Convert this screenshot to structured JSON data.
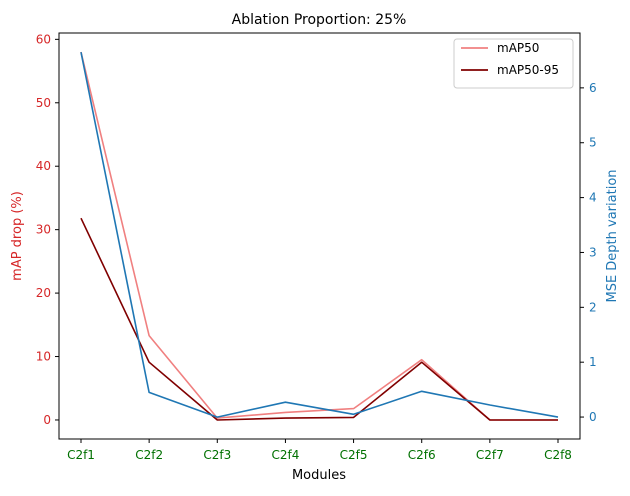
{
  "chart_data": {
    "type": "line",
    "title": "Ablation Proportion: 25%",
    "xlabel": "Modules",
    "categories": [
      "C2f1",
      "C2f2",
      "C2f3",
      "C2f4",
      "C2f5",
      "C2f6",
      "C2f7",
      "C2f8"
    ],
    "left_axis": {
      "label": "mAP drop (%)",
      "color": "#d62728",
      "ylim": [
        -3,
        61
      ],
      "ticks": [
        0,
        10,
        20,
        30,
        40,
        50,
        60
      ]
    },
    "right_axis": {
      "label": "MSE Depth variation",
      "color": "#1f77b4",
      "ylim": [
        -0.4,
        7.0
      ],
      "ticks": [
        0,
        1,
        2,
        3,
        4,
        5,
        6
      ]
    },
    "tick_label_color_x": "#007000",
    "series": [
      {
        "name": "mAP50",
        "axis": "left",
        "color": "#f08080",
        "values": [
          58.0,
          13.3,
          0.3,
          1.2,
          1.8,
          9.5,
          0.0,
          0.0
        ]
      },
      {
        "name": "mAP50-95",
        "axis": "left",
        "color": "#800000",
        "values": [
          31.8,
          9.1,
          0.0,
          0.3,
          0.4,
          9.1,
          0.0,
          0.0
        ]
      },
      {
        "axis": "right",
        "color": "#1f77b4",
        "values": [
          6.65,
          0.45,
          0.0,
          0.27,
          0.05,
          0.47,
          0.22,
          0.0
        ]
      }
    ],
    "legend": {
      "position": "top-right"
    },
    "grid": false
  }
}
